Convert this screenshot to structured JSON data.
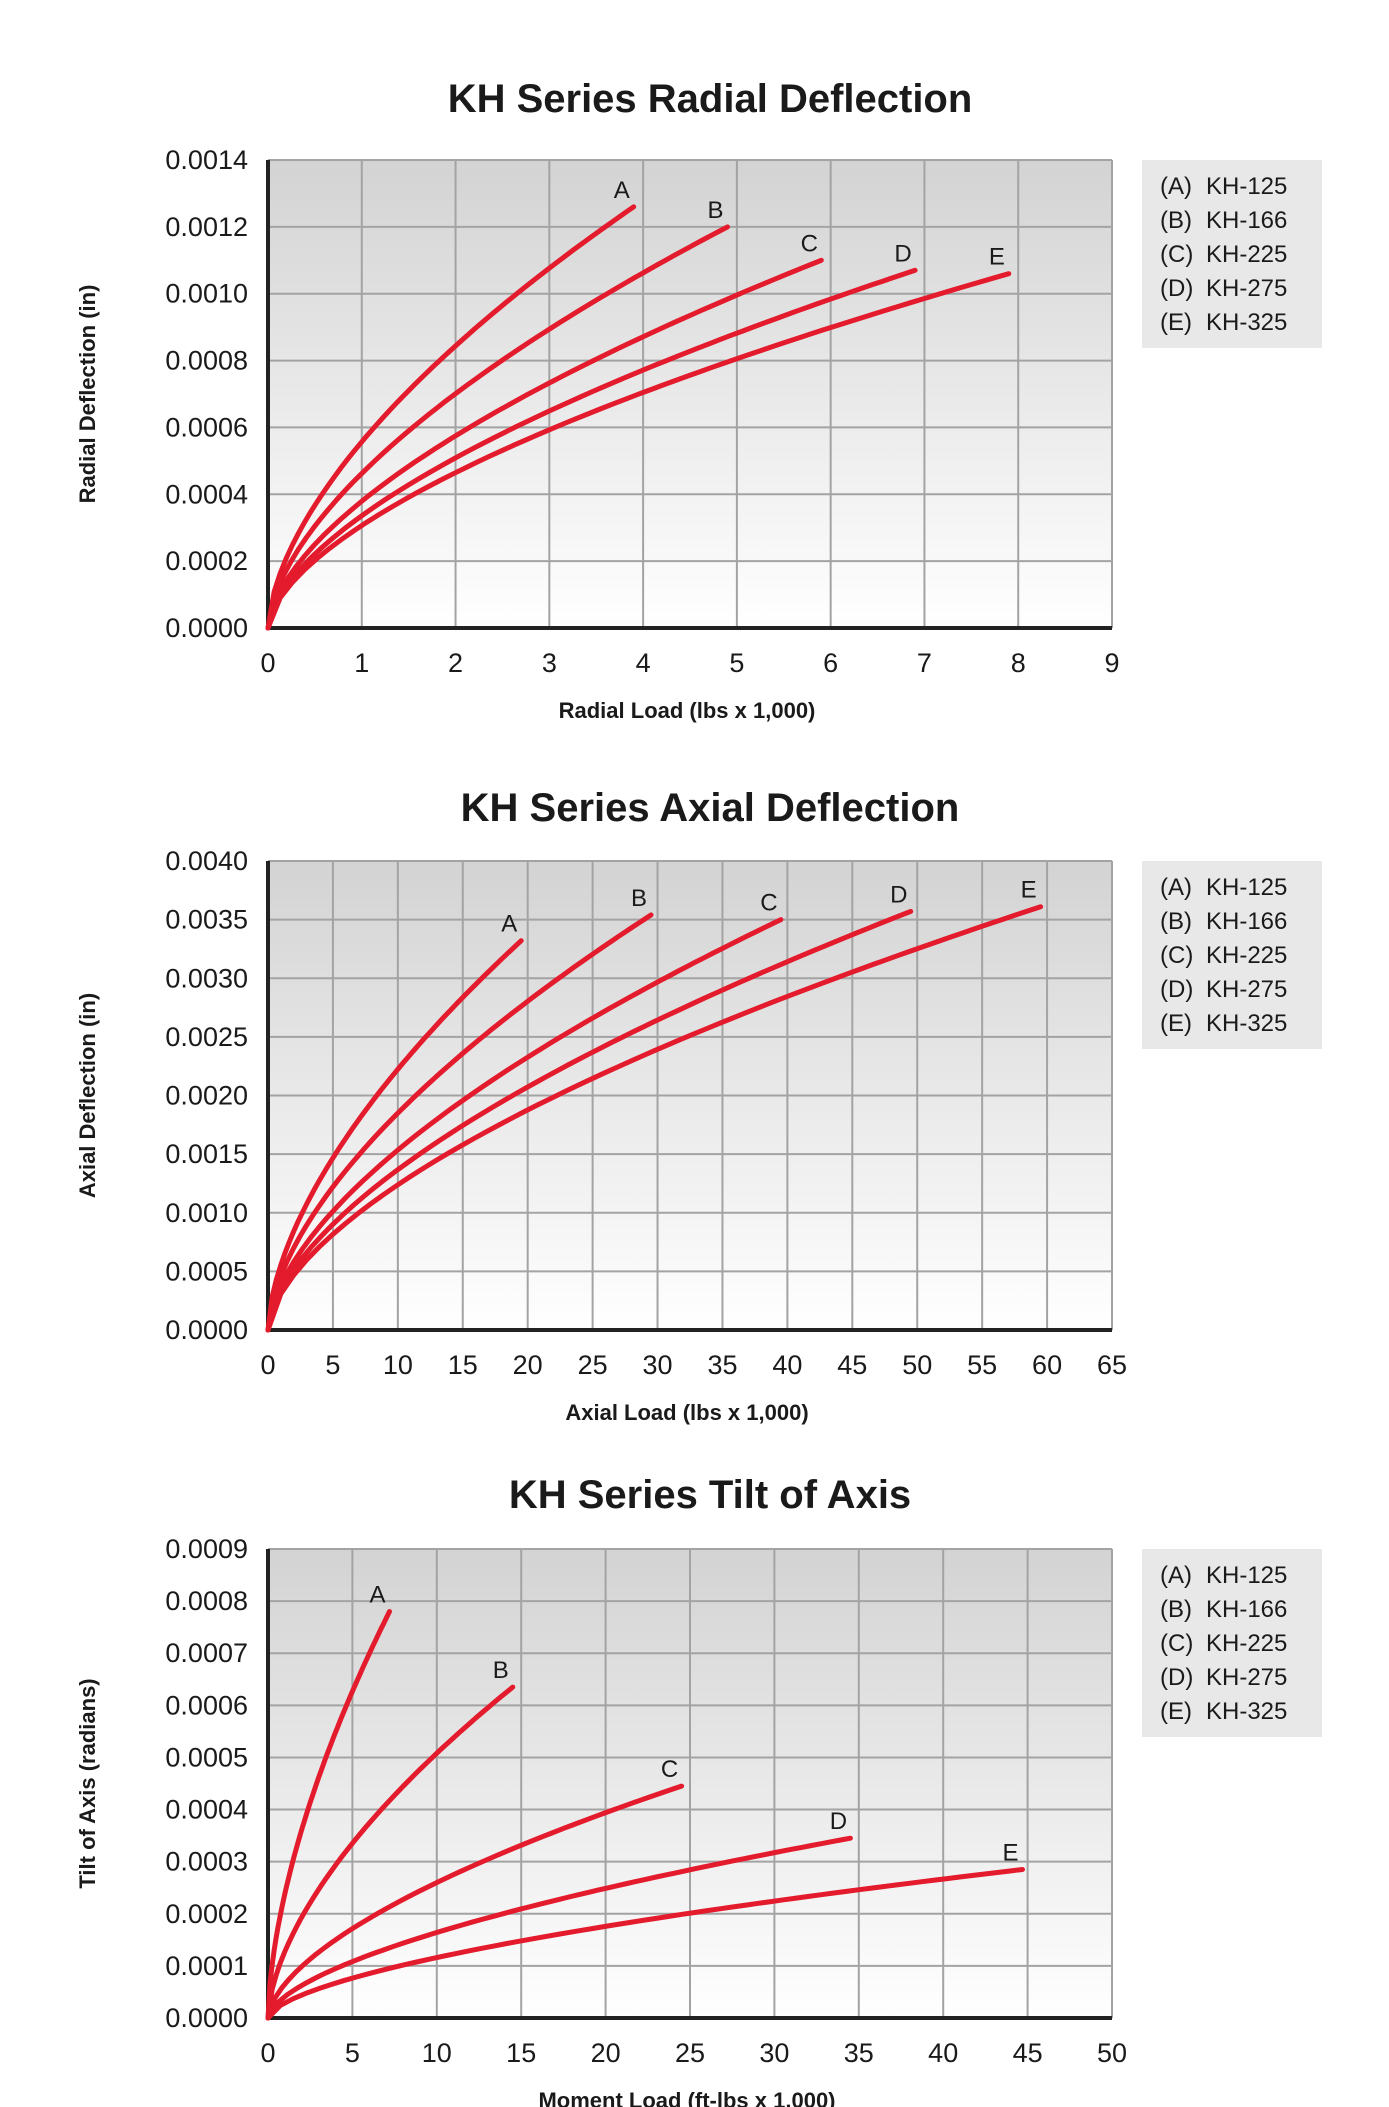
{
  "chart_data": [
    {
      "type": "line",
      "title": "KH Series Radial Deflection",
      "xlabel": "Radial Load (lbs x 1,000)",
      "ylabel": "Radial Deflection (in)",
      "xlim": [
        0,
        9
      ],
      "ylim": [
        0,
        0.0014
      ],
      "xticks": [
        "0",
        "1",
        "2",
        "3",
        "4",
        "5",
        "6",
        "7",
        "8",
        "9"
      ],
      "yticks": [
        "0.0000",
        "0.0002",
        "0.0004",
        "0.0006",
        "0.0008",
        "0.0010",
        "0.0012",
        "0.0014"
      ],
      "grid": true,
      "legend_position": "right",
      "legend": [
        "(A)  KH-125",
        "(B)  KH-166",
        "(C)  KH-225",
        "(D)  KH-275",
        "(E)  KH-325"
      ],
      "series_color": "#e31b2c",
      "series": [
        {
          "name": "A",
          "x_end": 3.9,
          "y_end": 0.00126,
          "exponent": 0.6
        },
        {
          "name": "B",
          "x_end": 4.9,
          "y_end": 0.0012,
          "exponent": 0.6
        },
        {
          "name": "C",
          "x_end": 5.9,
          "y_end": 0.0011,
          "exponent": 0.6
        },
        {
          "name": "D",
          "x_end": 6.9,
          "y_end": 0.00107,
          "exponent": 0.6
        },
        {
          "name": "E",
          "x_end": 7.9,
          "y_end": 0.00106,
          "exponent": 0.6
        }
      ]
    },
    {
      "type": "line",
      "title": "KH Series Axial Deflection",
      "xlabel": "Axial Load (lbs x 1,000)",
      "ylabel": "Axial Deflection (in)",
      "xlim": [
        0,
        65
      ],
      "ylim": [
        0,
        0.004
      ],
      "xticks": [
        "0",
        "5",
        "10",
        "15",
        "20",
        "25",
        "30",
        "35",
        "40",
        "45",
        "50",
        "55",
        "60",
        "65"
      ],
      "yticks": [
        "0.0000",
        "0.0005",
        "0.0010",
        "0.0015",
        "0.0020",
        "0.0025",
        "0.0030",
        "0.0035",
        "0.0040"
      ],
      "grid": true,
      "legend_position": "right",
      "legend": [
        "(A)  KH-125",
        "(B)  KH-166",
        "(C)  KH-225",
        "(D)  KH-275",
        "(E)  KH-325"
      ],
      "series_color": "#e31b2c",
      "series": [
        {
          "name": "A",
          "x_end": 19.5,
          "y_end": 0.00332,
          "exponent": 0.6
        },
        {
          "name": "B",
          "x_end": 29.5,
          "y_end": 0.00354,
          "exponent": 0.6
        },
        {
          "name": "C",
          "x_end": 39.5,
          "y_end": 0.0035,
          "exponent": 0.6
        },
        {
          "name": "D",
          "x_end": 49.5,
          "y_end": 0.00357,
          "exponent": 0.6
        },
        {
          "name": "E",
          "x_end": 59.5,
          "y_end": 0.00361,
          "exponent": 0.6
        }
      ]
    },
    {
      "type": "line",
      "title": "KH Series Tilt of Axis",
      "xlabel": "Moment Load (ft-lbs x 1,000)",
      "ylabel": "Tilt of Axis (radians)",
      "xlim": [
        0,
        50
      ],
      "ylim": [
        0,
        0.0009
      ],
      "xticks": [
        "0",
        "5",
        "10",
        "15",
        "20",
        "25",
        "30",
        "35",
        "40",
        "45",
        "50"
      ],
      "yticks": [
        "0.0000",
        "0.0001",
        "0.0002",
        "0.0003",
        "0.0004",
        "0.0005",
        "0.0006",
        "0.0007",
        "0.0008",
        "0.0009"
      ],
      "grid": true,
      "legend_position": "right",
      "legend": [
        "(A)  KH-125",
        "(B)  KH-166",
        "(C)  KH-225",
        "(D)  KH-275",
        "(E)  KH-325"
      ],
      "series_color": "#e31b2c",
      "series": [
        {
          "name": "A",
          "x_end": 7.2,
          "y_end": 0.00078,
          "exponent": 0.6
        },
        {
          "name": "B",
          "x_end": 14.5,
          "y_end": 0.000635,
          "exponent": 0.6
        },
        {
          "name": "C",
          "x_end": 24.5,
          "y_end": 0.000445,
          "exponent": 0.6
        },
        {
          "name": "D",
          "x_end": 34.5,
          "y_end": 0.000345,
          "exponent": 0.6
        },
        {
          "name": "E",
          "x_end": 44.7,
          "y_end": 0.000285,
          "exponent": 0.6
        }
      ]
    }
  ]
}
